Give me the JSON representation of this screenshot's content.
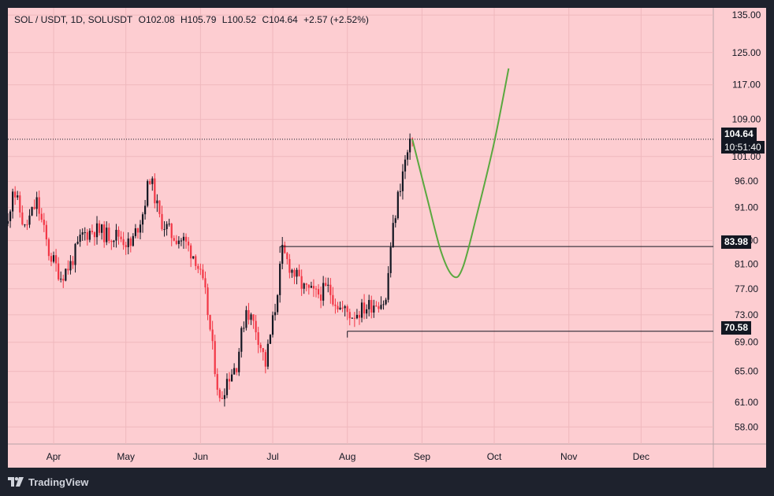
{
  "legend": {
    "symbol": "SOL / USDT, 1D, SOLUSDT",
    "open": "O102.08",
    "high": "H105.79",
    "low": "L100.52",
    "close": "C104.64",
    "change": "+2.57 (+2.52%)"
  },
  "footer": {
    "brand": "TradingView"
  },
  "tags": {
    "last_price": "104.64",
    "countdown": "10:51:40",
    "level_high": "83.98",
    "level_low": "70.58"
  },
  "colors": {
    "background": "#fdcdd1",
    "candle_up": "#131722",
    "candle_down": "#f23645",
    "projection": "#5aa83f",
    "levels": "#131722"
  },
  "chart_data": {
    "type": "candlestick",
    "x_start": "2023-03-13",
    "x_end": "2023-12-31",
    "y_scale": "log",
    "ylim": [
      56,
      137
    ],
    "y_ticks": [
      58,
      61,
      65,
      69,
      73,
      77,
      81,
      85,
      91,
      96,
      101,
      109,
      117,
      125,
      135
    ],
    "y_tick_labels": [
      "58.00",
      "61.00",
      "65.00",
      "69.00",
      "73.00",
      "77.00",
      "81.00",
      "85.00",
      "91.00",
      "96.00",
      "101.00",
      "109.00",
      "117.00",
      "125.00",
      "135.00"
    ],
    "x_ticks": [
      {
        "date": "2023-04-01",
        "label": "Apr"
      },
      {
        "date": "2023-05-01",
        "label": "May"
      },
      {
        "date": "2023-06-01",
        "label": "Jun"
      },
      {
        "date": "2023-07-01",
        "label": "Jul"
      },
      {
        "date": "2023-08-01",
        "label": "Aug"
      },
      {
        "date": "2023-09-01",
        "label": "Sep"
      },
      {
        "date": "2023-10-01",
        "label": "Oct"
      },
      {
        "date": "2023-11-01",
        "label": "Nov"
      },
      {
        "date": "2023-12-01",
        "label": "Dec"
      }
    ],
    "close_path": [
      [
        "2023-03-13",
        88
      ],
      [
        "2023-03-15",
        95
      ],
      [
        "2023-03-20",
        87
      ],
      [
        "2023-03-25",
        92
      ],
      [
        "2023-03-30",
        83
      ],
      [
        "2023-04-04",
        79
      ],
      [
        "2023-04-08",
        81
      ],
      [
        "2023-04-13",
        86
      ],
      [
        "2023-04-18",
        87
      ],
      [
        "2023-04-23",
        86
      ],
      [
        "2023-04-28",
        86
      ],
      [
        "2023-05-03",
        84
      ],
      [
        "2023-05-08",
        90
      ],
      [
        "2023-05-11",
        97
      ],
      [
        "2023-05-15",
        89
      ],
      [
        "2023-05-20",
        86
      ],
      [
        "2023-05-25",
        85
      ],
      [
        "2023-05-30",
        82
      ],
      [
        "2023-06-03",
        76
      ],
      [
        "2023-06-06",
        68
      ],
      [
        "2023-06-09",
        61
      ],
      [
        "2023-06-12",
        64
      ],
      [
        "2023-06-16",
        66
      ],
      [
        "2023-06-20",
        74
      ],
      [
        "2023-06-24",
        71
      ],
      [
        "2023-06-28",
        66
      ],
      [
        "2023-07-02",
        74
      ],
      [
        "2023-07-05",
        83
      ],
      [
        "2023-07-09",
        80
      ],
      [
        "2023-07-14",
        77
      ],
      [
        "2023-07-19",
        76
      ],
      [
        "2023-07-24",
        77
      ],
      [
        "2023-07-29",
        74
      ],
      [
        "2023-08-03",
        73
      ],
      [
        "2023-08-08",
        74
      ],
      [
        "2023-08-13",
        75
      ],
      [
        "2023-08-17",
        75
      ],
      [
        "2023-08-19",
        84
      ],
      [
        "2023-08-22",
        93
      ],
      [
        "2023-08-25",
        100
      ],
      [
        "2023-08-28",
        104.64
      ]
    ],
    "horizontal_levels": [
      {
        "price": 83.98,
        "from": "2023-07-04",
        "to": "2023-12-31"
      },
      {
        "price": 70.58,
        "from": "2023-08-01",
        "to": "2023-12-31"
      }
    ],
    "last_price": 104.64,
    "projection": [
      [
        "2023-08-28",
        104.64
      ],
      [
        "2023-09-03",
        93
      ],
      [
        "2023-09-09",
        83
      ],
      [
        "2023-09-14",
        79
      ],
      [
        "2023-09-18",
        80.5
      ],
      [
        "2023-09-24",
        90
      ],
      [
        "2023-10-01",
        104
      ],
      [
        "2023-10-07",
        121
      ]
    ]
  }
}
